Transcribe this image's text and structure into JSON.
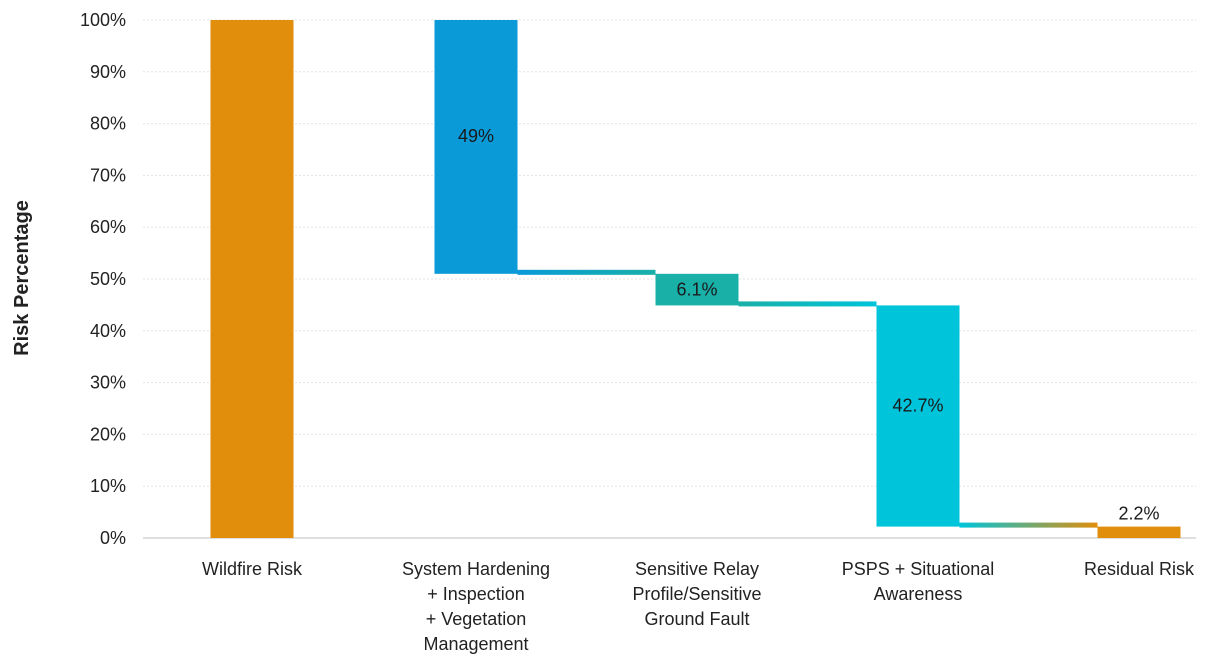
{
  "chart_data": {
    "type": "bar",
    "subtype": "waterfall",
    "title": "",
    "xlabel": "",
    "ylabel": "Risk Percentage",
    "ylim": [
      0,
      100
    ],
    "y_ticks": [
      "0%",
      "10%",
      "20%",
      "30%",
      "40%",
      "50%",
      "60%",
      "70%",
      "80%",
      "90%",
      "100%"
    ],
    "grid": "horizontal",
    "categories": [
      [
        "Wildfire Risk"
      ],
      [
        "System Hardening",
        "+ Inspection",
        "+ Vegetation",
        "Management"
      ],
      [
        "Sensitive Relay",
        "Profile/Sensitive",
        "Ground Fault"
      ],
      [
        "PSPS + Situational",
        "Awareness"
      ],
      [
        "Residual Risk"
      ]
    ],
    "bars": [
      {
        "kind": "total",
        "start": 0,
        "end": 100,
        "label": "",
        "color": "#E08E0B"
      },
      {
        "kind": "decrease",
        "start": 100,
        "end": 51,
        "label": "49%",
        "color": "#0A9AD8"
      },
      {
        "kind": "decrease",
        "start": 51,
        "end": 44.9,
        "label": "6.1%",
        "color": "#19B0A8"
      },
      {
        "kind": "decrease",
        "start": 44.9,
        "end": 2.2,
        "label": "42.7%",
        "color": "#00C4DA"
      },
      {
        "kind": "total",
        "start": 0,
        "end": 2.2,
        "label": "2.2%",
        "color": "#E08E0B"
      }
    ]
  }
}
